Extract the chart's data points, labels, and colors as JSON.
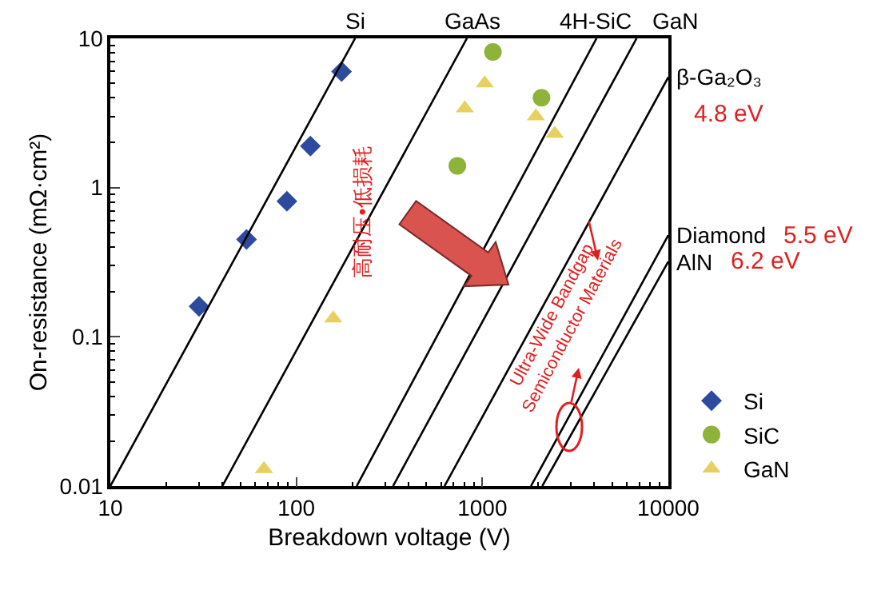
{
  "chart_data": {
    "type": "scatter",
    "xlabel": "Breakdown voltage (V)",
    "ylabel": "On-resistance (mΩ·cm²)",
    "log": "xy",
    "xlim": [
      10,
      10000
    ],
    "ylim": [
      0.01,
      10
    ],
    "xticks": [
      10,
      100,
      1000,
      10000
    ],
    "yticks": [
      0.01,
      0.1,
      1,
      10
    ],
    "legend": "bottom right",
    "series": [
      {
        "name": "Si",
        "marker": "diamond",
        "color": "#2e4a9e",
        "x": [
          30,
          54,
          89,
          119,
          175
        ],
        "values": [
          0.16,
          0.45,
          0.81,
          1.9,
          6
        ]
      },
      {
        "name": "SiC",
        "marker": "circle",
        "color": "#8db33a",
        "x": [
          1140,
          2080,
          734
        ],
        "values": [
          8.1,
          4,
          1.4
        ]
      },
      {
        "name": "GaN",
        "marker": "triangle",
        "color": "#e8d060",
        "x": [
          67,
          158,
          805,
          1030,
          1940,
          2450
        ],
        "values": [
          0.013,
          0.133,
          3.4,
          5,
          3,
          2.3
        ]
      },
      {
        "name": "Si",
        "type": "line",
        "color": "#000000",
        "x": [
          10,
          207
        ],
        "values": [
          0.01,
          10
        ]
      },
      {
        "name": "GaAs",
        "type": "line",
        "color": "#000000",
        "x": [
          40,
          826
        ],
        "values": [
          0.01,
          10
        ]
      },
      {
        "name": "4H-SiC",
        "type": "line",
        "color": "#000000",
        "x": [
          211,
          4110
        ],
        "values": [
          0.01,
          10
        ]
      },
      {
        "name": "GaN",
        "type": "line",
        "color": "#000000",
        "x": [
          331,
          6750
        ],
        "values": [
          0.01,
          10
        ]
      },
      {
        "name": "β-Ga₂O₃",
        "type": "line",
        "color": "#000000",
        "x": [
          626,
          10000
        ],
        "values": [
          0.01,
          5.5
        ]
      },
      {
        "name": "Diamond",
        "type": "line",
        "color": "#000000",
        "x": [
          1825,
          10000
        ],
        "values": [
          0.01,
          0.48
        ]
      },
      {
        "name": "AlN",
        "type": "line",
        "color": "#000000",
        "x": [
          2100,
          10000
        ],
        "values": [
          0.01,
          0.32
        ]
      }
    ],
    "annotations": [
      {
        "text": "高耐压•低损耗",
        "x": 228,
        "y": 0.7
      },
      "4.8 eV",
      "5.5 eV",
      "6.2 eV",
      "Ultra-Wide Bandgap\nSemiconductor Materials"
    ]
  }
}
